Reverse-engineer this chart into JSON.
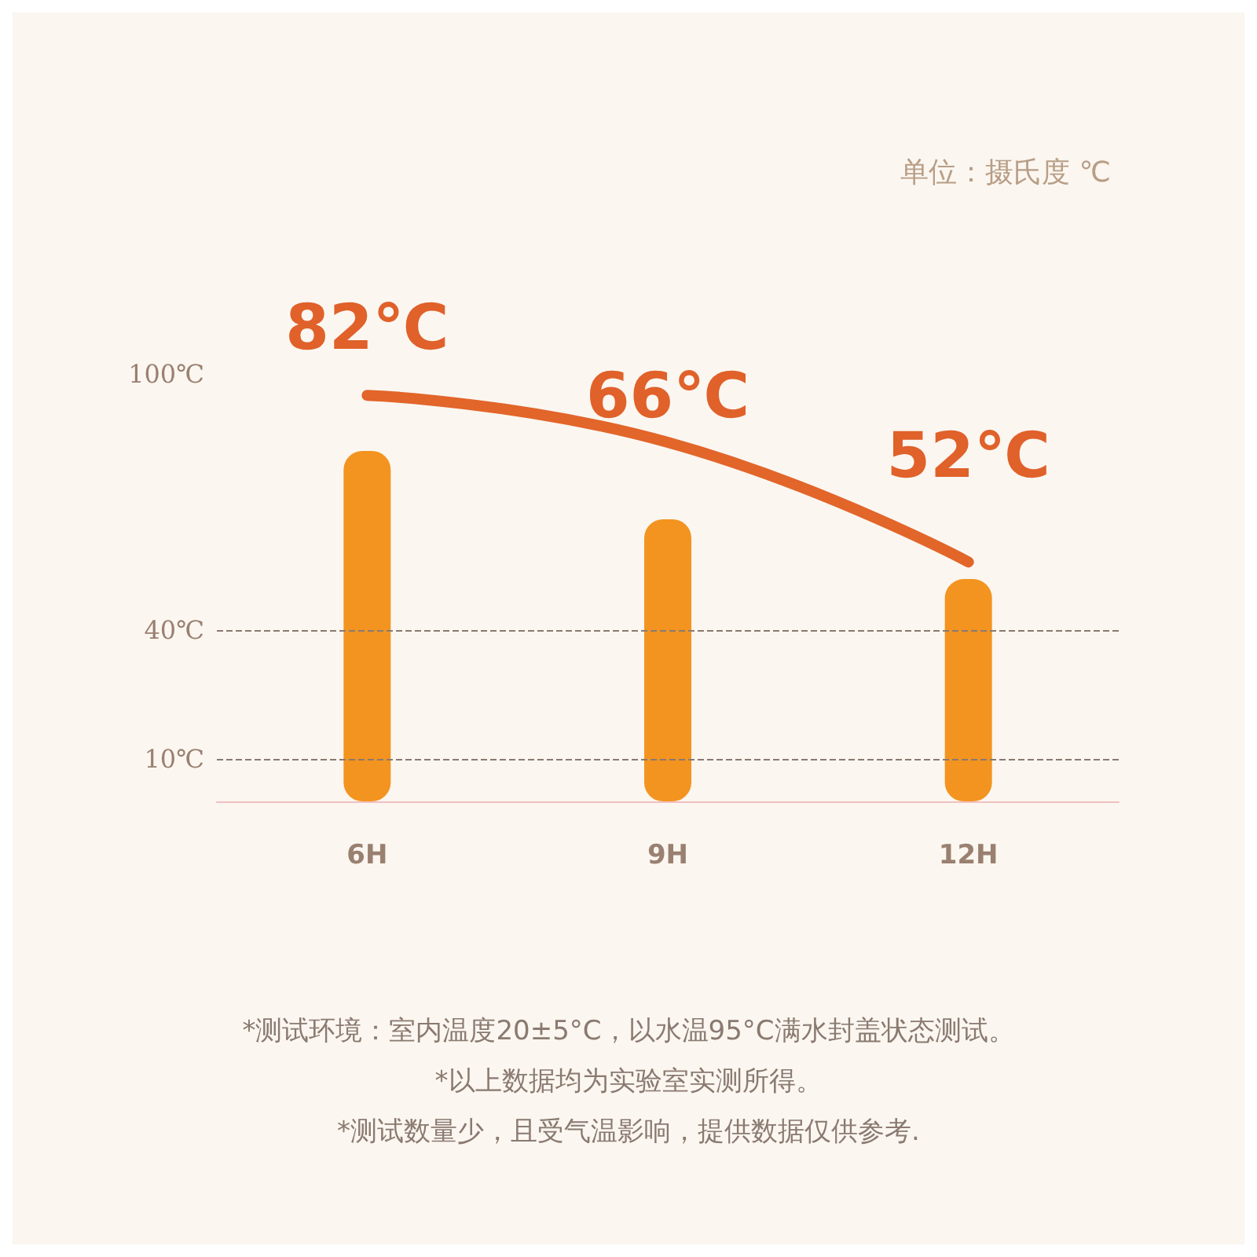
{
  "chart_data": {
    "type": "bar",
    "subtitle": "单位：摄氏度 ℃",
    "categories": [
      "6H",
      "9H",
      "12H"
    ],
    "series": [
      {
        "color": "#f39420",
        "values": [
          82,
          66,
          52
        ],
        "value_labels": [
          "82℃",
          "66℃",
          "52℃"
        ]
      },
      {
        "type": "line",
        "color": "#e2652a",
        "values": [
          95,
          84,
          56
        ],
        "marker": "none",
        "line_style": "solid"
      }
    ],
    "ylim": [
      0,
      100
    ],
    "yticks": [
      {
        "value": 10,
        "label": "10℃"
      },
      {
        "value": 40,
        "label": "40℃"
      },
      {
        "value": 100,
        "label": "100℃"
      }
    ],
    "grid": false,
    "ref_lines": [
      {
        "axis": "y",
        "value": 40,
        "line_style": "dashed",
        "color": "#8a7a70"
      },
      {
        "axis": "y",
        "value": 10,
        "line_style": "dashed",
        "color": "#8a7a70"
      }
    ],
    "annotations": [
      "*测试环境：室内温度20±5°C，以水温95°C满水封盖状态测试。",
      "*以上数据均为实验室实测所得。",
      "*测试数量少，且受气温影响，提供数据仅供参考."
    ]
  }
}
